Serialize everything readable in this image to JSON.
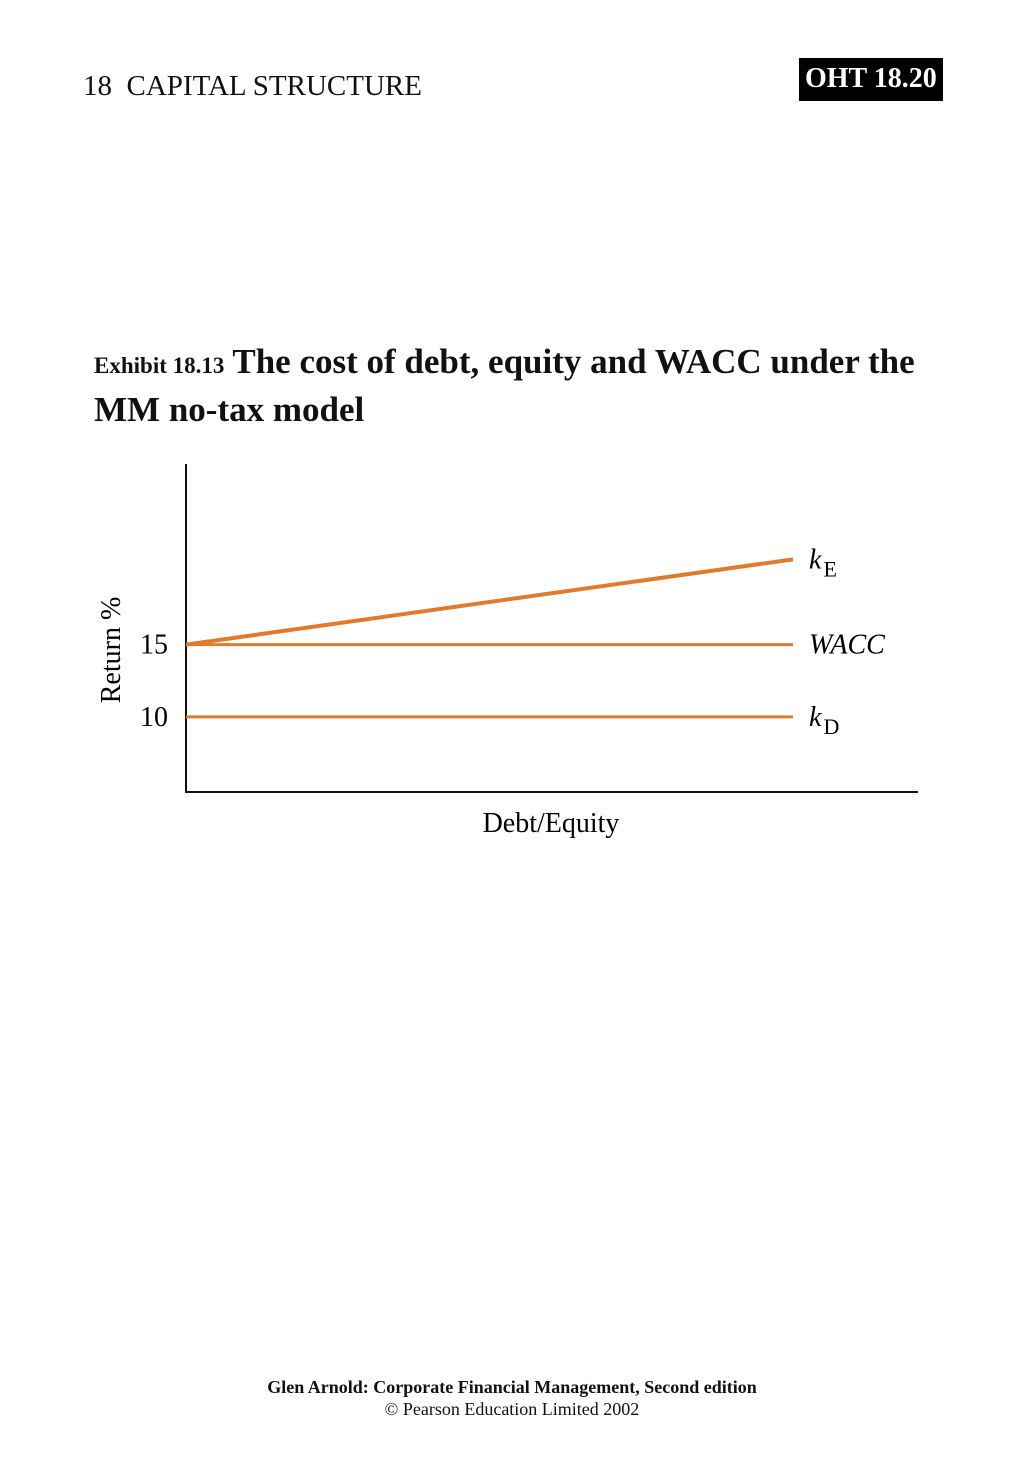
{
  "header": {
    "chapter": "18  CAPITAL STRUCTURE",
    "badge": "OHT 18.20"
  },
  "exhibit": {
    "number": "Exhibit 18.13",
    "title": "The cost of debt, equity and WACC under the MM no-tax model"
  },
  "chart_data": {
    "type": "line",
    "xlabel": "Debt/Equity",
    "ylabel": "Return %",
    "yticks": [
      "15",
      "10"
    ],
    "ytick_values": [
      15,
      10
    ],
    "x": [
      0,
      1
    ],
    "series": [
      {
        "name_main": "k",
        "name_sub": "E",
        "name_style": "italic-sub",
        "values": [
          15,
          20.9
        ],
        "color": "#e07b2e"
      },
      {
        "name_main": "WACC",
        "name_sub": "",
        "name_style": "italic",
        "values": [
          15,
          15
        ],
        "color": "#e07b2e"
      },
      {
        "name_main": "k",
        "name_sub": "D",
        "name_style": "italic-sub",
        "values": [
          10,
          10
        ],
        "color": "#e07b2e"
      }
    ],
    "ylim": [
      4.8,
      27.5
    ],
    "grid": false,
    "legend": "line-end labels"
  },
  "footer": {
    "book": "Glen Arnold: Corporate Financial Management, Second edition",
    "copyright": "© Pearson Education Limited 2002"
  }
}
